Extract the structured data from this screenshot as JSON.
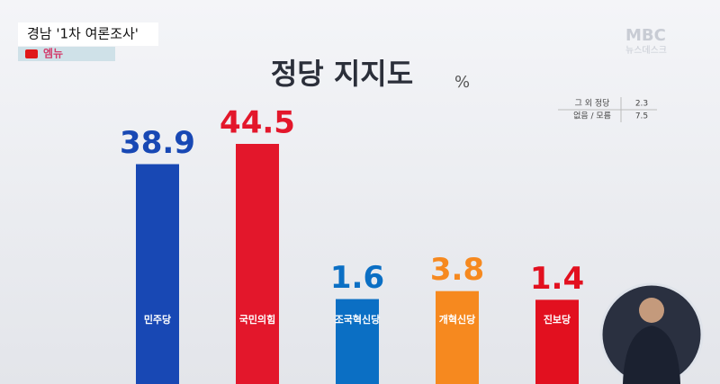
{
  "header": {
    "headline": "경남 '1차 여론조사'",
    "channel": "엠뉴",
    "logo": "MBC",
    "program": "뉴스데스크"
  },
  "chart_data": {
    "type": "bar",
    "title": "정당 지지도",
    "unit": "%",
    "categories": [
      "민주당",
      "국민의힘",
      "조국혁신당",
      "개혁신당",
      "진보당"
    ],
    "values": [
      38.9,
      44.5,
      1.6,
      3.8,
      1.4
    ],
    "colors": [
      "#1848b4",
      "#e3172b",
      "#0b6fc4",
      "#f6891f",
      "#e2101f"
    ]
  },
  "others": {
    "rows": [
      [
        "그 외 정당",
        2.3
      ],
      [
        "없음 / 모름",
        7.5
      ]
    ]
  }
}
